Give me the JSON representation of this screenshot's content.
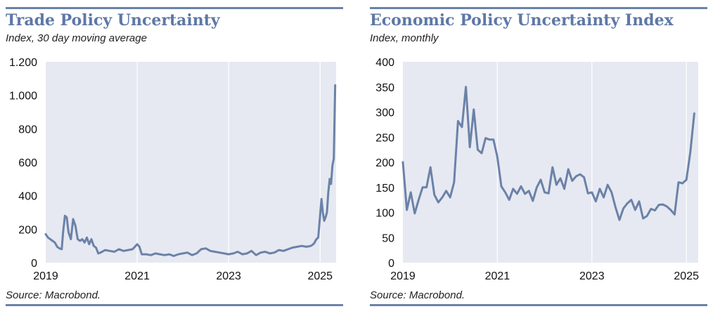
{
  "charts": [
    {
      "title": "Trade Policy Uncertainty",
      "subtitle": "Index, 30 day moving average",
      "source": "Source: Macrobond."
    },
    {
      "title": "Economic Policy Uncertainty Index",
      "subtitle": "Index, monthly",
      "source": "Source: Macrobond."
    }
  ],
  "colors": {
    "accent": "#5e78a6",
    "line": "#6b82a8",
    "plot_bg": "#e6e9f1",
    "grid": "#ffffff"
  },
  "chart_data": [
    {
      "type": "line",
      "title": "Trade Policy Uncertainty",
      "subtitle": "Index, 30 day moving average",
      "xlabel": "",
      "ylabel": "",
      "xlim": [
        2019.0,
        2025.35
      ],
      "ylim": [
        0,
        1200
      ],
      "y_ticks": [
        0,
        200,
        400,
        600,
        800,
        1000,
        1200
      ],
      "y_tick_labels": [
        "0",
        "200",
        "400",
        "600",
        "800",
        "1.000",
        "1.200"
      ],
      "x_ticks": [
        2019,
        2021,
        2023,
        2025
      ],
      "x_tick_labels": [
        "2019",
        "2021",
        "2023",
        "2025"
      ],
      "grid": "vertical",
      "series": [
        {
          "x": [
            2019.0,
            2019.05,
            2019.1,
            2019.15,
            2019.2,
            2019.25,
            2019.3,
            2019.35,
            2019.38,
            2019.42,
            2019.46,
            2019.5,
            2019.55,
            2019.6,
            2019.65,
            2019.7,
            2019.75,
            2019.8,
            2019.85,
            2019.9,
            2019.95,
            2020.0,
            2020.05,
            2020.1,
            2020.15,
            2020.2,
            2020.3,
            2020.4,
            2020.5,
            2020.6,
            2020.7,
            2020.8,
            2020.9,
            2021.0,
            2021.05,
            2021.1,
            2021.2,
            2021.3,
            2021.4,
            2021.5,
            2021.6,
            2021.7,
            2021.8,
            2021.9,
            2022.0,
            2022.1,
            2022.2,
            2022.3,
            2022.4,
            2022.5,
            2022.6,
            2022.7,
            2022.8,
            2022.9,
            2023.0,
            2023.1,
            2023.2,
            2023.3,
            2023.4,
            2023.5,
            2023.6,
            2023.7,
            2023.8,
            2023.9,
            2024.0,
            2024.1,
            2024.2,
            2024.3,
            2024.4,
            2024.5,
            2024.6,
            2024.7,
            2024.8,
            2024.85,
            2024.88,
            2024.92,
            2024.96,
            2025.0,
            2025.03,
            2025.06,
            2025.09,
            2025.12,
            2025.15,
            2025.18,
            2025.21,
            2025.24,
            2025.27,
            2025.3,
            2025.33
          ],
          "values": [
            170,
            150,
            140,
            130,
            120,
            95,
            85,
            80,
            180,
            280,
            270,
            180,
            140,
            260,
            220,
            140,
            130,
            140,
            120,
            150,
            110,
            140,
            100,
            90,
            55,
            60,
            75,
            70,
            65,
            80,
            70,
            75,
            80,
            110,
            95,
            50,
            50,
            45,
            55,
            50,
            45,
            50,
            40,
            50,
            55,
            60,
            45,
            55,
            80,
            85,
            70,
            65,
            60,
            55,
            50,
            55,
            65,
            50,
            55,
            70,
            45,
            60,
            65,
            55,
            60,
            75,
            70,
            80,
            90,
            95,
            100,
            95,
            100,
            110,
            120,
            140,
            150,
            280,
            380,
            300,
            250,
            270,
            300,
            420,
            500,
            470,
            580,
            620,
            1060
          ]
        }
      ]
    },
    {
      "type": "line",
      "title": "Economic Policy Uncertainty Index",
      "subtitle": "Index, monthly",
      "xlabel": "",
      "ylabel": "",
      "xlim": [
        2019.0,
        2025.25
      ],
      "ylim": [
        0,
        400
      ],
      "y_ticks": [
        0,
        50,
        100,
        150,
        200,
        250,
        300,
        350,
        400
      ],
      "y_tick_labels": [
        "0",
        "50",
        "100",
        "150",
        "200",
        "250",
        "300",
        "350",
        "400"
      ],
      "x_ticks": [
        2019,
        2021,
        2023,
        2025
      ],
      "x_tick_labels": [
        "2019",
        "2021",
        "2023",
        "2025"
      ],
      "grid": "vertical",
      "series": [
        {
          "x": [
            2019.0,
            2019.083,
            2019.167,
            2019.25,
            2019.333,
            2019.417,
            2019.5,
            2019.583,
            2019.667,
            2019.75,
            2019.833,
            2019.917,
            2020.0,
            2020.083,
            2020.167,
            2020.25,
            2020.333,
            2020.417,
            2020.5,
            2020.583,
            2020.667,
            2020.75,
            2020.833,
            2020.917,
            2021.0,
            2021.083,
            2021.167,
            2021.25,
            2021.333,
            2021.417,
            2021.5,
            2021.583,
            2021.667,
            2021.75,
            2021.833,
            2021.917,
            2022.0,
            2022.083,
            2022.167,
            2022.25,
            2022.333,
            2022.417,
            2022.5,
            2022.583,
            2022.667,
            2022.75,
            2022.833,
            2022.917,
            2023.0,
            2023.083,
            2023.167,
            2023.25,
            2023.333,
            2023.417,
            2023.5,
            2023.583,
            2023.667,
            2023.75,
            2023.833,
            2023.917,
            2024.0,
            2024.083,
            2024.167,
            2024.25,
            2024.333,
            2024.417,
            2024.5,
            2024.583,
            2024.667,
            2024.75,
            2024.833,
            2024.917,
            2025.0,
            2025.083,
            2025.167
          ],
          "values": [
            200,
            105,
            140,
            98,
            125,
            150,
            150,
            190,
            135,
            120,
            130,
            143,
            130,
            160,
            282,
            270,
            350,
            230,
            305,
            225,
            218,
            248,
            245,
            245,
            210,
            152,
            140,
            125,
            147,
            137,
            152,
            137,
            143,
            123,
            150,
            165,
            140,
            138,
            190,
            155,
            168,
            147,
            186,
            163,
            172,
            176,
            170,
            138,
            140,
            122,
            147,
            130,
            155,
            140,
            110,
            85,
            108,
            118,
            125,
            105,
            122,
            88,
            93,
            107,
            104,
            115,
            116,
            112,
            105,
            96,
            160,
            158,
            165,
            220,
            297
          ]
        }
      ]
    }
  ]
}
